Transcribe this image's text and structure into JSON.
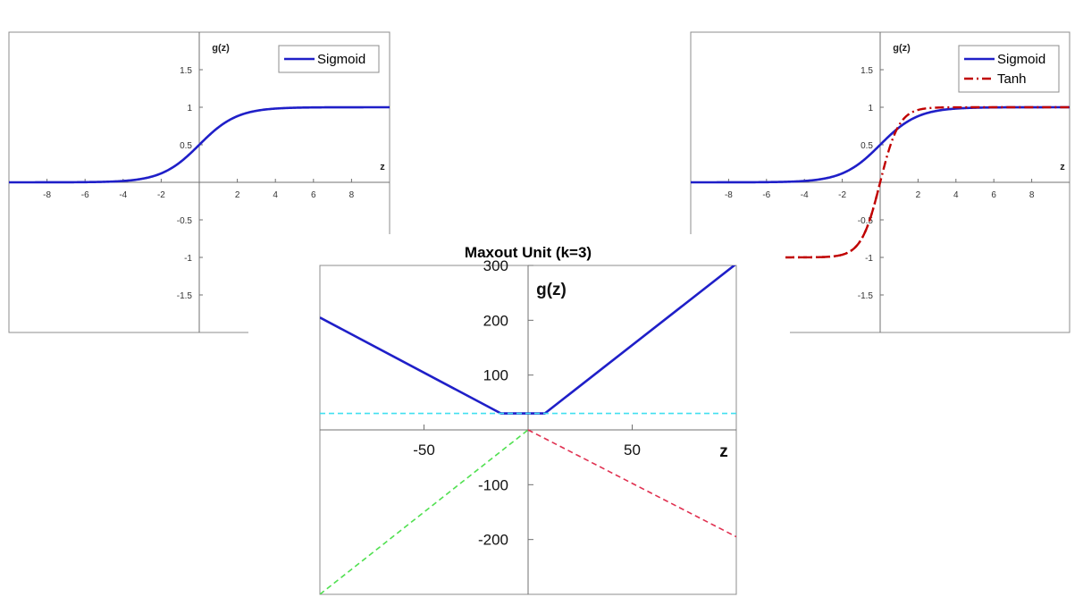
{
  "chart_data": [
    {
      "id": "left",
      "type": "line",
      "title": "",
      "xlabel": "z",
      "ylabel": "g(z)",
      "xlim": [
        -10,
        10
      ],
      "ylim": [
        -2,
        2
      ],
      "xticks": [
        -8,
        -6,
        -4,
        -2,
        2,
        4,
        6,
        8
      ],
      "xtick_labels": [
        "-8",
        "-6",
        "-4",
        "-2",
        "2",
        "4",
        "6",
        "8"
      ],
      "yticks": [
        1.5,
        1,
        0.5,
        -0.5,
        -1,
        -1.5
      ],
      "ytick_labels": [
        "1.5",
        "1",
        "0.5",
        "-0.5",
        "-1",
        "-1.5"
      ],
      "legend_position": "top-right",
      "series": [
        {
          "name": "Sigmoid",
          "function": "sigmoid",
          "color": "#1f1fc8",
          "style": "solid"
        }
      ]
    },
    {
      "id": "right",
      "type": "line",
      "title": "",
      "xlabel": "z",
      "ylabel": "g(z)",
      "xlim": [
        -10,
        10
      ],
      "ylim": [
        -2,
        2
      ],
      "xticks": [
        -8,
        -6,
        -4,
        -2,
        2,
        4,
        6,
        8
      ],
      "xtick_labels": [
        "-8",
        "-6",
        "-4",
        "-2",
        "2",
        "4",
        "6",
        "8"
      ],
      "yticks": [
        1.5,
        1,
        0.5,
        -0.5,
        -1,
        -1.5
      ],
      "ytick_labels": [
        "1.5",
        "1",
        "0.5",
        "-0.5",
        "-1",
        "-1.5"
      ],
      "legend_position": "top-right",
      "series": [
        {
          "name": "Sigmoid",
          "function": "sigmoid",
          "color": "#1f1fc8",
          "style": "solid"
        },
        {
          "name": "Tanh",
          "function": "tanh",
          "color": "#c00000",
          "style": "dash-dot"
        }
      ]
    },
    {
      "id": "maxout",
      "type": "line",
      "title": "Maxout Unit (k=3)",
      "xlabel": "z",
      "ylabel": "g(z)",
      "xlim": [
        -100,
        100
      ],
      "ylim": [
        -300,
        300
      ],
      "xticks": [
        -50,
        50
      ],
      "xtick_labels": [
        "-50",
        "50"
      ],
      "yticks": [
        300,
        200,
        100,
        -100,
        -200
      ],
      "ytick_labels": [
        "300",
        "200",
        "100",
        "-100",
        "-200"
      ],
      "series": [
        {
          "points": [
            [
              -100,
              205
            ],
            [
              -13,
              30
            ],
            [
              8,
              30
            ],
            [
              100,
              303
            ]
          ],
          "color": "#1f1fc8",
          "style": "solid"
        },
        {
          "points": [
            [
              -100,
              30
            ],
            [
              100,
              30
            ]
          ],
          "color": "#40e0f0",
          "style": "dashed"
        },
        {
          "points": [
            [
              -100,
              -300
            ],
            [
              0,
              0
            ]
          ],
          "color": "#50e050",
          "style": "dashed"
        },
        {
          "points": [
            [
              0,
              0
            ],
            [
              100,
              -195
            ]
          ],
          "color": "#e03050",
          "style": "dashed"
        }
      ]
    }
  ]
}
